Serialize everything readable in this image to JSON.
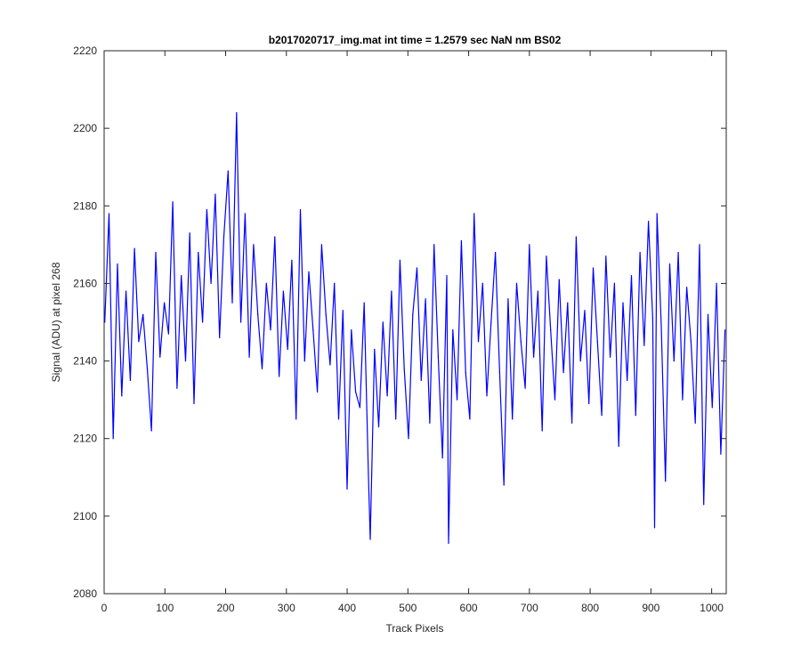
{
  "chart_data": {
    "type": "line",
    "title": "b2017020717_img.mat int time = 1.2579 sec  NaN nm BS02",
    "xlabel": "Track Pixels",
    "ylabel": "Signal (ADU) at pixel 268",
    "xlim": [
      0,
      1024
    ],
    "ylim": [
      2080,
      2220
    ],
    "xticks": [
      0,
      100,
      200,
      300,
      400,
      500,
      600,
      700,
      800,
      900,
      1000
    ],
    "yticks": [
      2080,
      2100,
      2120,
      2140,
      2160,
      2180,
      2200,
      2220
    ],
    "grid": false,
    "series_color": "#0000ff",
    "series": [
      {
        "x": [
          1,
          8,
          15,
          22,
          29,
          36,
          43,
          50,
          57,
          64,
          71,
          78,
          85,
          92,
          99,
          106,
          113,
          120,
          127,
          134,
          141,
          148,
          155,
          162,
          169,
          176,
          183,
          190,
          197,
          204,
          211,
          218,
          225,
          232,
          239,
          246,
          253,
          260,
          267,
          274,
          281,
          288,
          295,
          302,
          309,
          316,
          323,
          330,
          337,
          344,
          351,
          358,
          365,
          372,
          379,
          386,
          393,
          400,
          407,
          414,
          421,
          428,
          435,
          438,
          445,
          452,
          459,
          466,
          473,
          480,
          487,
          494,
          501,
          508,
          515,
          522,
          529,
          536,
          543,
          550,
          557,
          564,
          567,
          574,
          581,
          588,
          595,
          602,
          609,
          616,
          623,
          630,
          637,
          644,
          651,
          658,
          665,
          672,
          679,
          686,
          693,
          700,
          707,
          714,
          721,
          728,
          735,
          742,
          749,
          756,
          763,
          770,
          777,
          784,
          791,
          798,
          805,
          812,
          819,
          826,
          833,
          840,
          847,
          854,
          861,
          868,
          875,
          882,
          889,
          896,
          903,
          906,
          910,
          917,
          924,
          931,
          938,
          945,
          952,
          959,
          966,
          973,
          980,
          987,
          994,
          1001,
          1008,
          1015,
          1022
        ],
        "values": [
          2150,
          2178,
          2120,
          2165,
          2131,
          2158,
          2135,
          2169,
          2145,
          2152,
          2138,
          2122,
          2168,
          2141,
          2155,
          2147,
          2181,
          2133,
          2162,
          2140,
          2173,
          2129,
          2168,
          2150,
          2179,
          2160,
          2183,
          2146,
          2172,
          2189,
          2155,
          2204,
          2150,
          2178,
          2141,
          2170,
          2152,
          2138,
          2160,
          2148,
          2172,
          2136,
          2158,
          2143,
          2166,
          2125,
          2179,
          2140,
          2163,
          2148,
          2132,
          2170,
          2152,
          2139,
          2160,
          2125,
          2153,
          2107,
          2148,
          2132,
          2128,
          2155,
          2111,
          2094,
          2143,
          2123,
          2150,
          2131,
          2158,
          2125,
          2166,
          2138,
          2120,
          2152,
          2164,
          2135,
          2156,
          2124,
          2170,
          2141,
          2115,
          2162,
          2093,
          2148,
          2130,
          2171,
          2137,
          2125,
          2178,
          2145,
          2160,
          2131,
          2150,
          2168,
          2137,
          2108,
          2156,
          2125,
          2160,
          2145,
          2133,
          2170,
          2141,
          2158,
          2122,
          2167,
          2148,
          2130,
          2161,
          2137,
          2155,
          2124,
          2172,
          2140,
          2153,
          2129,
          2164,
          2145,
          2126,
          2167,
          2141,
          2160,
          2118,
          2155,
          2135,
          2162,
          2126,
          2168,
          2144,
          2176,
          2151,
          2097,
          2178,
          2149,
          2109,
          2165,
          2140,
          2168,
          2130,
          2159,
          2145,
          2124,
          2170,
          2103,
          2152,
          2128,
          2160,
          2116,
          2148
        ]
      }
    ]
  }
}
